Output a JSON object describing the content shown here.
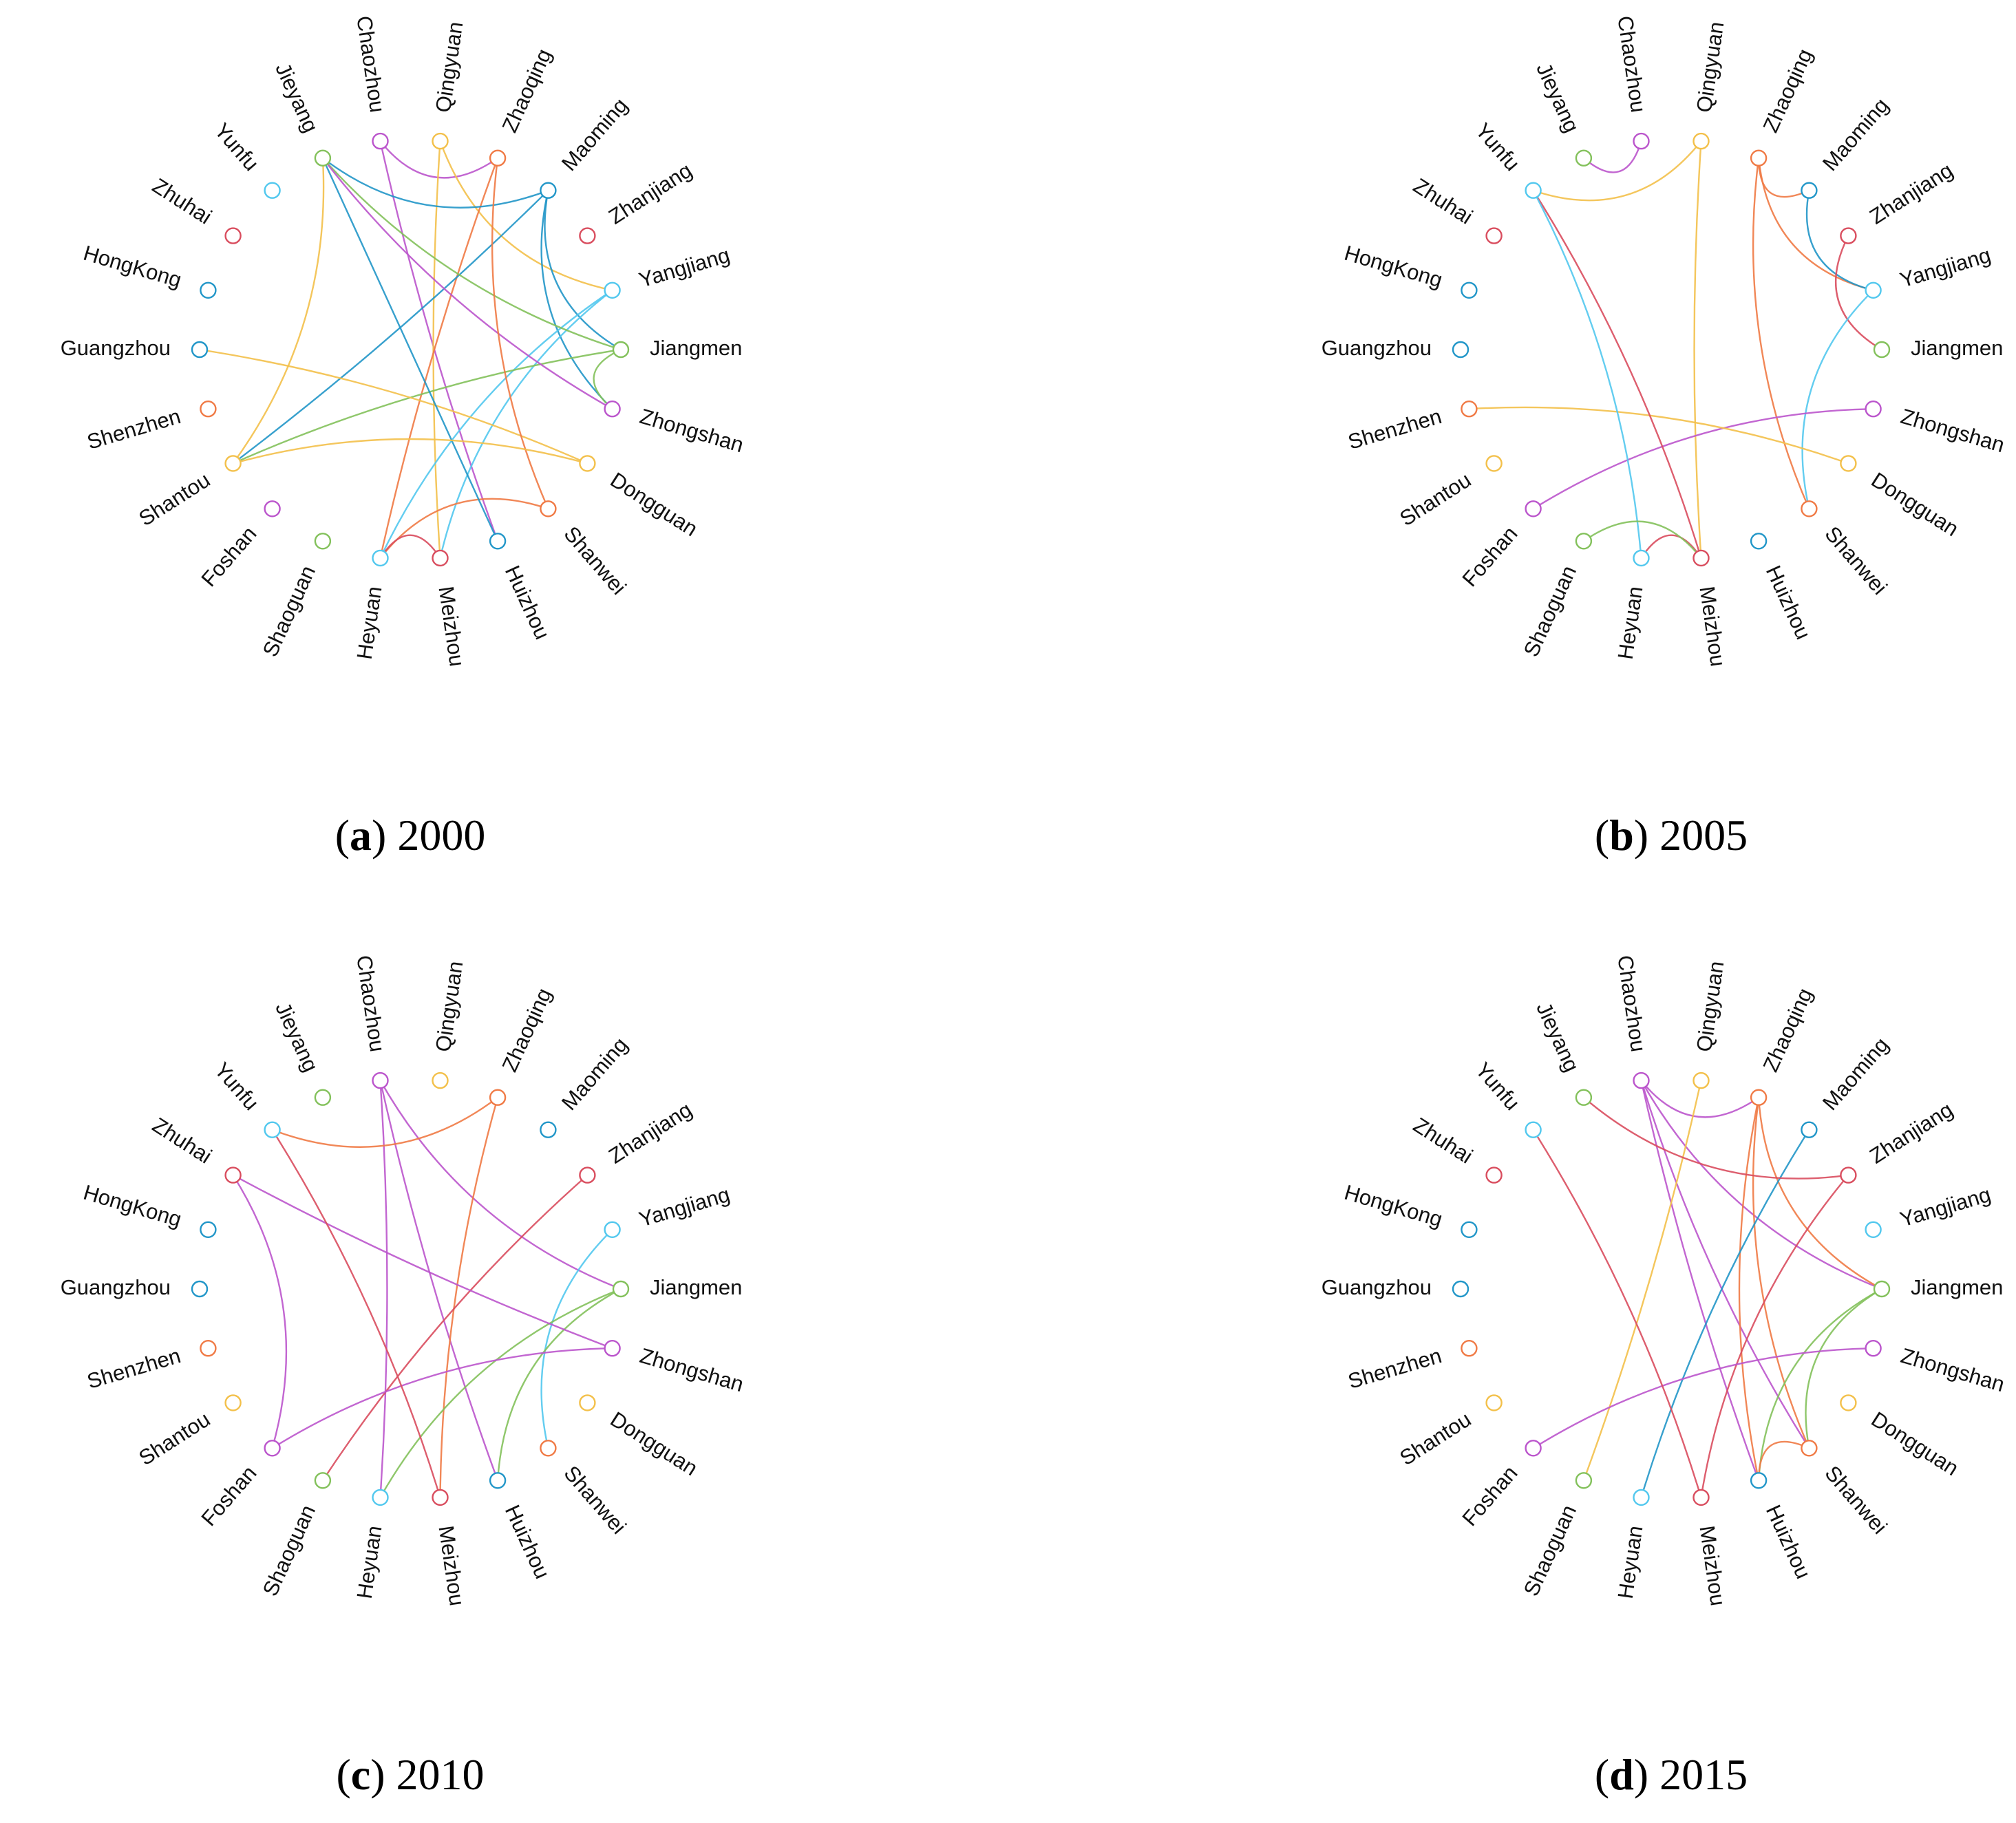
{
  "nodes": [
    {
      "id": "Chaozhou",
      "color": "#bb55cc"
    },
    {
      "id": "Qingyuan",
      "color": "#f3c04a"
    },
    {
      "id": "Zhaoqing",
      "color": "#f07a45"
    },
    {
      "id": "Maoming",
      "color": "#2196c8"
    },
    {
      "id": "Zhanjiang",
      "color": "#d94d5e"
    },
    {
      "id": "Yangjiang",
      "color": "#52c8ee"
    },
    {
      "id": "Jiangmen",
      "color": "#83c15b"
    },
    {
      "id": "Zhongshan",
      "color": "#bb55cc"
    },
    {
      "id": "Dongguan",
      "color": "#f3c04a"
    },
    {
      "id": "Shanwei",
      "color": "#f07a45"
    },
    {
      "id": "Huizhou",
      "color": "#2196c8"
    },
    {
      "id": "Meizhou",
      "color": "#d94d5e"
    },
    {
      "id": "Heyuan",
      "color": "#52c8ee"
    },
    {
      "id": "Shaoguan",
      "color": "#83c15b"
    },
    {
      "id": "Foshan",
      "color": "#bb55cc"
    },
    {
      "id": "Shantou",
      "color": "#f3c04a"
    },
    {
      "id": "Shenzhen",
      "color": "#f07a45"
    },
    {
      "id": "Guangzhou",
      "color": "#2196c8"
    },
    {
      "id": "HongKong",
      "color": "#2196c8"
    },
    {
      "id": "Zhuhai",
      "color": "#d94d5e"
    },
    {
      "id": "Yunfu",
      "color": "#52c8ee"
    },
    {
      "id": "Jieyang",
      "color": "#83c15b"
    }
  ],
  "panels": [
    {
      "letter": "a",
      "year": "2000",
      "edges": [
        [
          "Chaozhou",
          "Zhaoqing"
        ],
        [
          "Chaozhou",
          "Huizhou"
        ],
        [
          "Qingyuan",
          "Meizhou"
        ],
        [
          "Qingyuan",
          "Yangjiang"
        ],
        [
          "Zhaoqing",
          "Heyuan"
        ],
        [
          "Maoming",
          "Jieyang"
        ],
        [
          "Maoming",
          "Shantou"
        ],
        [
          "Maoming",
          "Zhongshan"
        ],
        [
          "Maoming",
          "Jiangmen"
        ],
        [
          "Yangjiang",
          "Meizhou"
        ],
        [
          "Yangjiang",
          "Heyuan"
        ],
        [
          "Jiangmen",
          "Jieyang"
        ],
        [
          "Jiangmen",
          "Shantou"
        ],
        [
          "Jiangmen",
          "Zhongshan"
        ],
        [
          "Zhongshan",
          "Jieyang"
        ],
        [
          "Dongguan",
          "Guangzhou"
        ],
        [
          "Shanwei",
          "Heyuan"
        ],
        [
          "Shanwei",
          "Zhaoqing"
        ],
        [
          "Huizhou",
          "Jieyang"
        ],
        [
          "Shantou",
          "Jieyang"
        ],
        [
          "Shantou",
          "Dongguan"
        ],
        [
          "Meizhou",
          "Heyuan"
        ]
      ]
    },
    {
      "letter": "b",
      "year": "2005",
      "edges": [
        [
          "Chaozhou",
          "Jieyang"
        ],
        [
          "Qingyuan",
          "Yunfu"
        ],
        [
          "Qingyuan",
          "Meizhou"
        ],
        [
          "Zhaoqing",
          "Maoming"
        ],
        [
          "Zhaoqing",
          "Yangjiang"
        ],
        [
          "Zhaoqing",
          "Shanwei"
        ],
        [
          "Maoming",
          "Yangjiang"
        ],
        [
          "Zhanjiang",
          "Jiangmen"
        ],
        [
          "Yangjiang",
          "Shanwei"
        ],
        [
          "Zhongshan",
          "Foshan"
        ],
        [
          "Dongguan",
          "Shenzhen"
        ],
        [
          "Meizhou",
          "Heyuan"
        ],
        [
          "Meizhou",
          "Yunfu"
        ],
        [
          "Heyuan",
          "Yunfu"
        ],
        [
          "Shaoguan",
          "Meizhou"
        ]
      ]
    },
    {
      "letter": "c",
      "year": "2010",
      "edges": [
        [
          "Chaozhou",
          "Jiangmen"
        ],
        [
          "Chaozhou",
          "Huizhou"
        ],
        [
          "Chaozhou",
          "Heyuan"
        ],
        [
          "Zhaoqing",
          "Yunfu"
        ],
        [
          "Zhaoqing",
          "Meizhou"
        ],
        [
          "Zhanjiang",
          "Shaoguan"
        ],
        [
          "Yangjiang",
          "Shanwei"
        ],
        [
          "Jiangmen",
          "Heyuan"
        ],
        [
          "Jiangmen",
          "Huizhou"
        ],
        [
          "Zhongshan",
          "Zhuhai"
        ],
        [
          "Zhongshan",
          "Foshan"
        ],
        [
          "Meizhou",
          "Yunfu"
        ],
        [
          "Foshan",
          "Zhuhai"
        ]
      ]
    },
    {
      "letter": "d",
      "year": "2015",
      "edges": [
        [
          "Chaozhou",
          "Zhaoqing"
        ],
        [
          "Chaozhou",
          "Jiangmen"
        ],
        [
          "Chaozhou",
          "Shanwei"
        ],
        [
          "Chaozhou",
          "Huizhou"
        ],
        [
          "Qingyuan",
          "Shaoguan"
        ],
        [
          "Zhaoqing",
          "Jiangmen"
        ],
        [
          "Zhaoqing",
          "Shanwei"
        ],
        [
          "Zhaoqing",
          "Huizhou"
        ],
        [
          "Maoming",
          "Heyuan"
        ],
        [
          "Zhanjiang",
          "Jieyang"
        ],
        [
          "Zhanjiang",
          "Meizhou"
        ],
        [
          "Jiangmen",
          "Huizhou"
        ],
        [
          "Jiangmen",
          "Shanwei"
        ],
        [
          "Zhongshan",
          "Foshan"
        ],
        [
          "Shanwei",
          "Huizhou"
        ],
        [
          "Meizhou",
          "Yunfu"
        ]
      ]
    }
  ]
}
